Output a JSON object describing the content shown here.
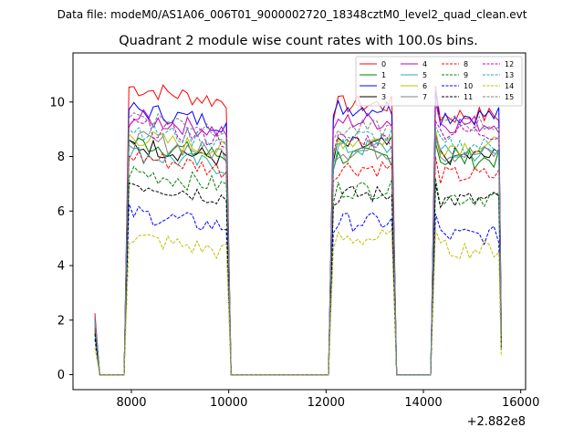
{
  "chart_data": {
    "type": "line",
    "suptitle": "Data file: modeM0/AS1A06_006T01_9000002720_18348cztM0_level2_quad_clean.evt",
    "title": "Quadrant 2 module wise count rates with 100.0s bins.",
    "xlabel": "",
    "ylabel": "",
    "x_offset_label": "+2.882e8",
    "xlim": [
      6800,
      16100
    ],
    "ylim": [
      -0.55,
      11.8
    ],
    "x_ticks": [
      8000,
      10000,
      12000,
      14000,
      16000
    ],
    "y_ticks": [
      0,
      2,
      4,
      6,
      8,
      10
    ],
    "legend_position": "top-right",
    "x": [
      7250,
      7350,
      7450,
      7550,
      7650,
      7750,
      7850,
      7950,
      8050,
      8150,
      8250,
      8350,
      8450,
      8550,
      8650,
      8750,
      8850,
      8950,
      9050,
      9150,
      9250,
      9350,
      9450,
      9550,
      9650,
      9750,
      9850,
      9950,
      10050,
      10150,
      10250,
      10350,
      10450,
      10550,
      10650,
      10750,
      10850,
      10950,
      11050,
      11150,
      11250,
      11350,
      11450,
      11550,
      11650,
      11750,
      11850,
      11950,
      12050,
      12150,
      12250,
      12350,
      12450,
      12550,
      12650,
      12750,
      12850,
      12950,
      13050,
      13150,
      13250,
      13350,
      13450,
      13550,
      13650,
      13750,
      13850,
      13950,
      14050,
      14150,
      14250,
      14350,
      14450,
      14550,
      14650,
      14750,
      14850,
      14950,
      15050,
      15150,
      15250,
      15350,
      15450,
      15550,
      15600
    ],
    "series": [
      {
        "name": "0",
        "color": "#ff0000",
        "dash": false,
        "plateaus": [
          10.0,
          9.9,
          9.5
        ],
        "ends": [
          2.25,
          9.3,
          10.6,
          2.1
        ]
      },
      {
        "name": "1",
        "color": "#008000",
        "dash": false,
        "plateaus": [
          8.0,
          8.0,
          7.9
        ],
        "ends": [
          2.0,
          7.5,
          8.5,
          1.4
        ]
      },
      {
        "name": "2",
        "color": "#0000ff",
        "dash": false,
        "plateaus": [
          9.2,
          9.8,
          9.5
        ],
        "ends": [
          2.1,
          9.5,
          10.4,
          1.9
        ]
      },
      {
        "name": "3",
        "color": "#000000",
        "dash": false,
        "plateaus": [
          7.9,
          8.4,
          8.0
        ],
        "ends": [
          1.9,
          7.8,
          8.8,
          1.3
        ]
      },
      {
        "name": "4",
        "color": "#bf00bf",
        "dash": false,
        "plateaus": [
          8.9,
          9.3,
          9.2
        ],
        "ends": [
          2.1,
          9.0,
          10.0,
          1.6
        ]
      },
      {
        "name": "5",
        "color": "#20b2aa",
        "dash": false,
        "plateaus": [
          7.6,
          8.3,
          8.1
        ],
        "ends": [
          1.8,
          7.5,
          8.6,
          1.3
        ]
      },
      {
        "name": "6",
        "color": "#bfbf00",
        "dash": false,
        "plateaus": [
          8.2,
          8.6,
          8.4
        ],
        "ends": [
          1.9,
          8.0,
          9.0,
          1.4
        ]
      },
      {
        "name": "7",
        "color": "#808080",
        "dash": false,
        "plateaus": [
          8.1,
          8.2,
          8.1
        ],
        "ends": [
          1.9,
          7.8,
          8.8,
          1.3
        ]
      },
      {
        "name": "8",
        "color": "#ff0000",
        "dash": true,
        "plateaus": [
          7.5,
          7.6,
          7.3
        ],
        "ends": [
          1.7,
          7.1,
          8.0,
          1.1
        ]
      },
      {
        "name": "9",
        "color": "#008000",
        "dash": true,
        "plateaus": [
          6.9,
          6.8,
          6.5
        ],
        "ends": [
          1.6,
          6.3,
          7.2,
          1.0
        ]
      },
      {
        "name": "10",
        "color": "#0000ff",
        "dash": true,
        "plateaus": [
          5.4,
          5.6,
          5.1
        ],
        "ends": [
          1.3,
          5.2,
          5.9,
          0.9
        ]
      },
      {
        "name": "11",
        "color": "#000000",
        "dash": true,
        "plateaus": [
          6.5,
          6.6,
          6.4
        ],
        "ends": [
          1.5,
          6.2,
          7.0,
          1.0
        ]
      },
      {
        "name": "12",
        "color": "#bf00bf",
        "dash": true,
        "plateaus": [
          8.6,
          8.6,
          8.9
        ],
        "ends": [
          2.0,
          8.1,
          9.3,
          1.5
        ]
      },
      {
        "name": "13",
        "color": "#20b2aa",
        "dash": true,
        "plateaus": [
          8.5,
          8.7,
          8.4
        ],
        "ends": [
          2.0,
          8.2,
          9.1,
          1.4
        ]
      },
      {
        "name": "14",
        "color": "#bfbf00",
        "dash": true,
        "plateaus": [
          4.5,
          5.0,
          4.6
        ],
        "ends": [
          1.0,
          4.6,
          5.3,
          0.7
        ]
      },
      {
        "name": "15",
        "color": "#808080",
        "dash": true,
        "plateaus": [
          9.0,
          9.0,
          9.2
        ],
        "ends": [
          2.1,
          8.6,
          9.6,
          1.6
        ]
      }
    ]
  }
}
